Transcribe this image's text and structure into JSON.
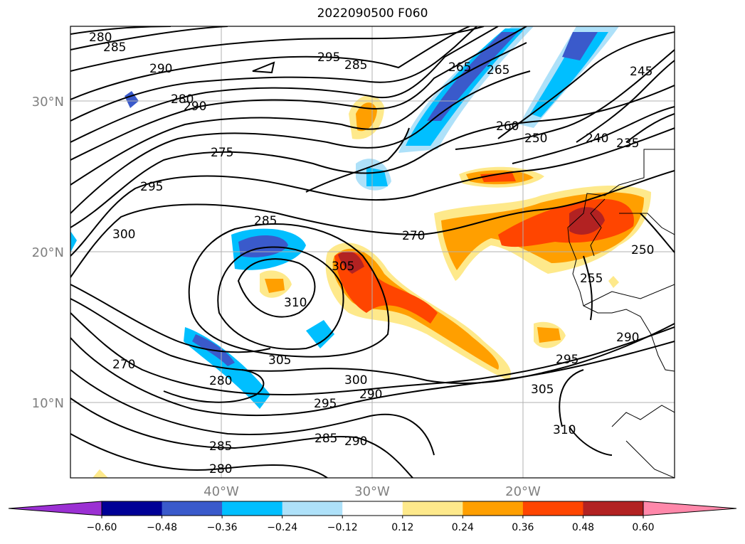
{
  "title": "2022090500 F060",
  "lat_ticks": [
    {
      "label": "30°N",
      "lat": 30
    },
    {
      "label": "20°N",
      "lat": 20
    },
    {
      "label": "10°N",
      "lat": 10
    }
  ],
  "lon_ticks": [
    {
      "label": "40°W",
      "lon": -40
    },
    {
      "label": "30°W",
      "lon": -30
    },
    {
      "label": "20°W",
      "lon": -20
    }
  ],
  "colorbar": {
    "ticks": [
      "−0.60",
      "−0.48",
      "−0.36",
      "−0.24",
      "−0.12",
      "0.12",
      "0.24",
      "0.36",
      "0.48",
      "0.60"
    ],
    "levels": [
      -0.6,
      -0.48,
      -0.36,
      -0.24,
      -0.12,
      0.12,
      0.24,
      0.36,
      0.48,
      0.6
    ],
    "colors": [
      "#9b30d3",
      "#000096",
      "#3a5acb",
      "#00bfff",
      "#aee1f9",
      "#ffffff",
      "#fee98b",
      "#ff9f00",
      "#ff4500",
      "#b22222",
      "#ff88aa"
    ]
  },
  "contour_labels": [
    "280",
    "285",
    "290",
    "295",
    "285",
    "280",
    "290",
    "275",
    "295",
    "300",
    "270",
    "285",
    "305",
    "310",
    "305",
    "280",
    "300",
    "290",
    "295",
    "285",
    "290",
    "285",
    "280",
    "265",
    "260",
    "250",
    "245",
    "240",
    "235",
    "250",
    "255",
    "290",
    "295",
    "305",
    "310",
    "270",
    "265"
  ],
  "grid": true
}
